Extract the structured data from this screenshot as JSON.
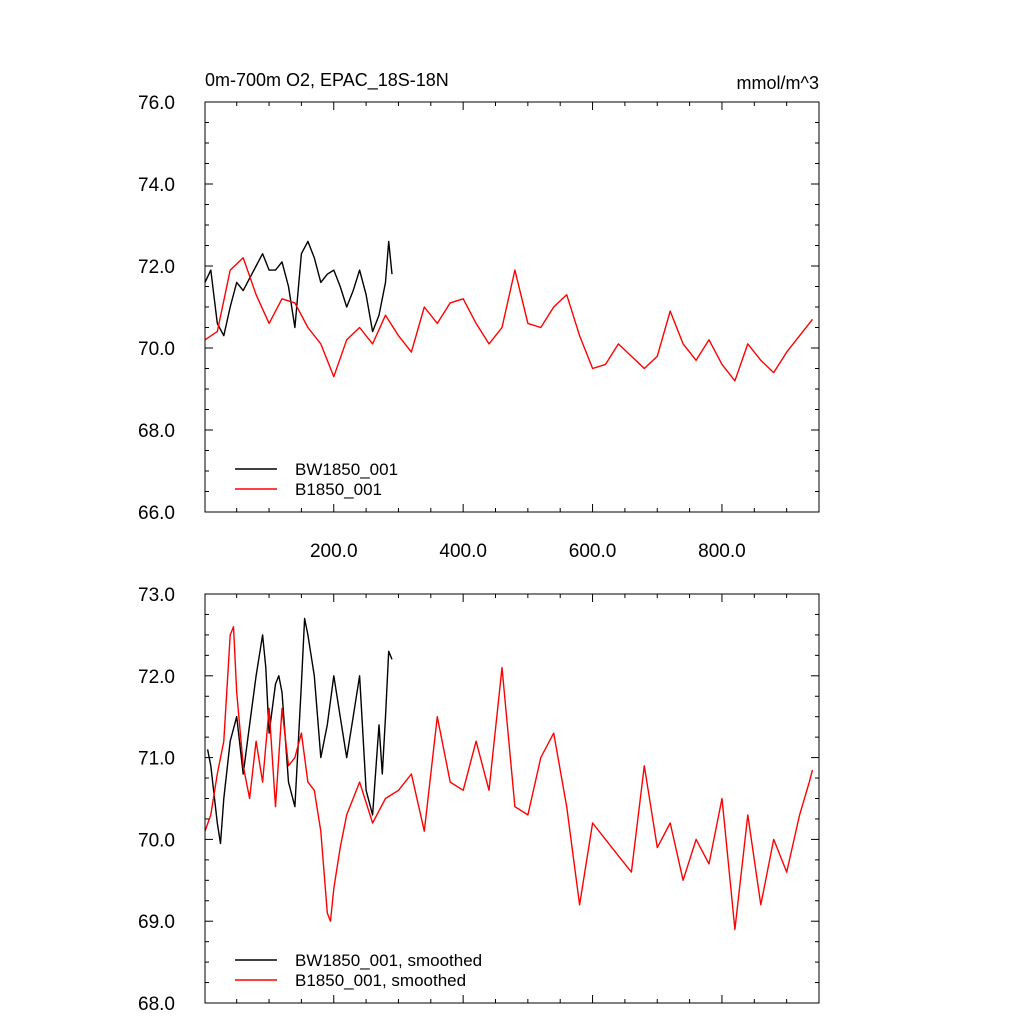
{
  "chart_data": [
    {
      "type": "line",
      "title": "0m-700m O2, EPAC_18S-18N",
      "units": "mmol/m^3",
      "xlabel": "",
      "ylabel": "",
      "xlim": [
        1,
        950
      ],
      "ylim": [
        66,
        76
      ],
      "xticks": [
        200,
        400,
        600,
        800
      ],
      "xtick_labels": [
        "200.0",
        "400.0",
        "600.0",
        "800.0"
      ],
      "yticks": [
        66,
        68,
        70,
        72,
        74,
        76
      ],
      "ytick_labels": [
        "66.0",
        "68.0",
        "70.0",
        "72.0",
        "74.0",
        "76.0"
      ],
      "grid": false,
      "legend_position": "bottom-left",
      "series": [
        {
          "name": "BW1850_001",
          "color": "#000000",
          "x": [
            1,
            10,
            20,
            30,
            40,
            50,
            60,
            70,
            80,
            90,
            100,
            110,
            120,
            130,
            140,
            150,
            160,
            170,
            180,
            190,
            200,
            210,
            220,
            230,
            240,
            250,
            260,
            270,
            280,
            285,
            290
          ],
          "y": [
            71.6,
            71.9,
            70.6,
            70.3,
            71.0,
            71.6,
            71.4,
            71.7,
            72.0,
            72.3,
            71.9,
            71.9,
            72.1,
            71.5,
            70.5,
            72.3,
            72.6,
            72.2,
            71.6,
            71.8,
            71.9,
            71.5,
            71.0,
            71.4,
            71.9,
            71.3,
            70.4,
            70.8,
            71.6,
            72.6,
            71.8
          ]
        },
        {
          "name": "B1850_001",
          "color": "#ff0000",
          "x": [
            1,
            20,
            40,
            60,
            80,
            100,
            120,
            140,
            160,
            180,
            200,
            220,
            240,
            260,
            280,
            300,
            320,
            340,
            360,
            380,
            400,
            420,
            440,
            460,
            480,
            500,
            520,
            540,
            560,
            580,
            600,
            620,
            640,
            660,
            680,
            700,
            720,
            740,
            760,
            780,
            800,
            820,
            840,
            860,
            880,
            900,
            920,
            940
          ],
          "y": [
            70.2,
            70.4,
            71.9,
            72.2,
            71.3,
            70.6,
            71.2,
            71.1,
            70.5,
            70.1,
            69.3,
            70.2,
            70.5,
            70.1,
            70.8,
            70.3,
            69.9,
            71.0,
            70.6,
            71.1,
            71.2,
            70.6,
            70.1,
            70.5,
            71.9,
            70.6,
            70.5,
            71.0,
            71.3,
            70.3,
            69.5,
            69.6,
            70.1,
            69.8,
            69.5,
            69.8,
            70.9,
            70.1,
            69.7,
            70.2,
            69.6,
            69.2,
            70.1,
            69.7,
            69.4,
            69.9,
            70.3,
            70.7
          ]
        }
      ]
    },
    {
      "type": "line",
      "title": "",
      "xlabel": "",
      "ylabel": "",
      "xlim": [
        1,
        950
      ],
      "ylim": [
        68,
        73
      ],
      "xticks": [
        200,
        400,
        600,
        800
      ],
      "xtick_labels": [],
      "yticks": [
        68,
        69,
        70,
        71,
        72,
        73
      ],
      "ytick_labels": [
        "68.0",
        "69.0",
        "70.0",
        "71.0",
        "72.0",
        "73.0"
      ],
      "grid": false,
      "legend_position": "bottom-left",
      "series": [
        {
          "name": "BW1850_001, smoothed",
          "color": "#000000",
          "x": [
            5,
            10,
            20,
            25,
            30,
            40,
            50,
            60,
            70,
            80,
            90,
            95,
            100,
            110,
            115,
            120,
            130,
            140,
            150,
            155,
            160,
            170,
            180,
            190,
            200,
            210,
            220,
            230,
            240,
            250,
            260,
            270,
            275,
            280,
            285,
            290
          ],
          "y": [
            71.1,
            70.9,
            70.2,
            69.95,
            70.5,
            71.2,
            71.5,
            70.8,
            71.4,
            72.0,
            72.5,
            72.1,
            71.3,
            71.9,
            72.0,
            71.8,
            70.7,
            70.4,
            71.9,
            72.7,
            72.5,
            72.0,
            71.0,
            71.4,
            72.0,
            71.5,
            71.0,
            71.5,
            72.0,
            70.6,
            70.3,
            71.4,
            70.8,
            71.5,
            72.3,
            72.2
          ]
        },
        {
          "name": "B1850_001, smoothed",
          "color": "#ff0000",
          "x": [
            1,
            10,
            20,
            30,
            40,
            45,
            50,
            60,
            70,
            80,
            90,
            100,
            110,
            120,
            130,
            140,
            150,
            160,
            170,
            180,
            190,
            195,
            200,
            210,
            220,
            240,
            260,
            280,
            300,
            320,
            340,
            360,
            380,
            400,
            420,
            440,
            460,
            480,
            500,
            520,
            540,
            560,
            580,
            600,
            620,
            640,
            660,
            680,
            700,
            720,
            740,
            760,
            780,
            800,
            820,
            840,
            860,
            880,
            900,
            920,
            935,
            940
          ],
          "y": [
            70.1,
            70.3,
            70.8,
            71.2,
            72.5,
            72.6,
            71.8,
            70.9,
            70.5,
            71.2,
            70.7,
            71.6,
            70.4,
            71.6,
            70.9,
            71.0,
            71.3,
            70.7,
            70.6,
            70.1,
            69.1,
            69.0,
            69.4,
            69.9,
            70.3,
            70.7,
            70.2,
            70.5,
            70.6,
            70.8,
            70.1,
            71.5,
            70.7,
            70.6,
            71.2,
            70.6,
            72.1,
            70.4,
            70.3,
            71.0,
            71.3,
            70.4,
            69.2,
            70.2,
            70.0,
            69.8,
            69.6,
            70.9,
            69.9,
            70.2,
            69.5,
            70.0,
            69.7,
            70.5,
            68.9,
            70.3,
            69.2,
            70.0,
            69.6,
            70.3,
            70.7,
            70.85
          ]
        }
      ]
    }
  ]
}
